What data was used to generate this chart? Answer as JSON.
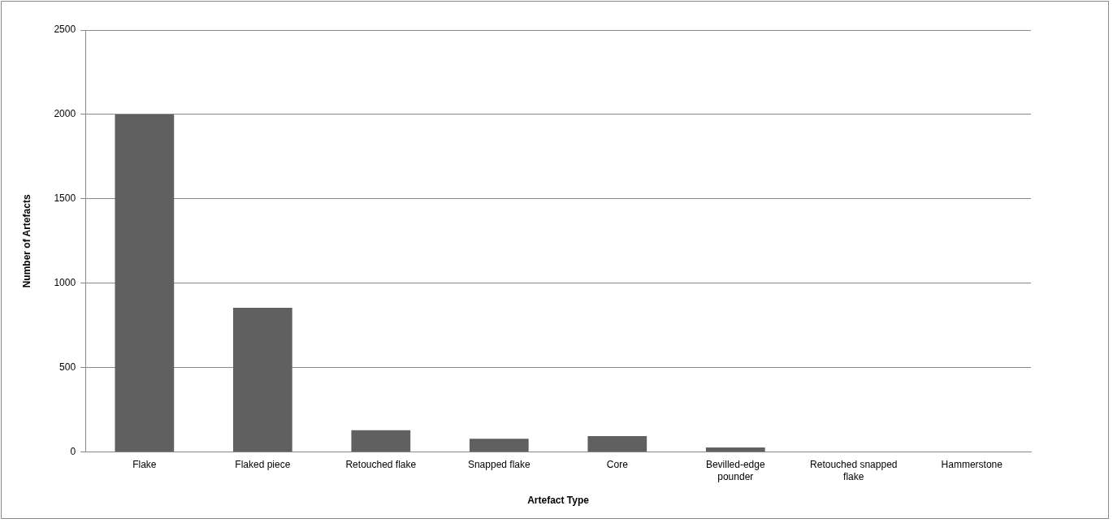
{
  "chart_data": {
    "type": "bar",
    "xlabel": "Artefact Type",
    "ylabel": "Number of Artefacts",
    "categories": [
      "Flake",
      "Flaked piece",
      "Retouched flake",
      "Snapped flake",
      "Core",
      "Bevilled-edge pounder",
      "Retouched snapped flake",
      "Hammerstone"
    ],
    "values": [
      2000,
      855,
      130,
      80,
      95,
      28,
      0,
      0
    ],
    "color": "#606060",
    "ylim": [
      0,
      2500
    ],
    "yticks": [
      0,
      500,
      1000,
      1500,
      2000,
      2500
    ],
    "grid": "y",
    "legend": false
  }
}
